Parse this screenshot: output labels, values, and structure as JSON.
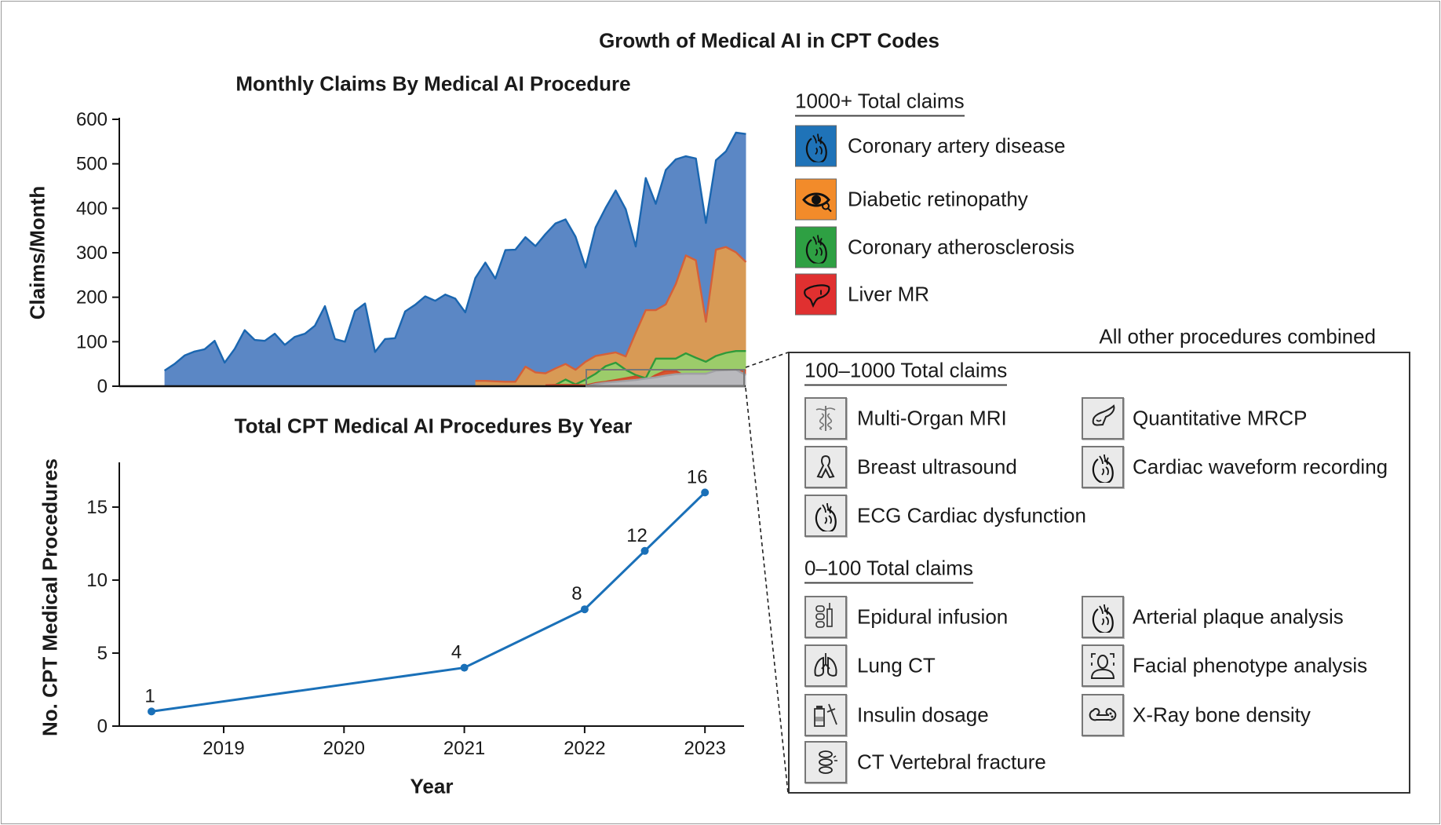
{
  "figure_title": "Growth of Medical AI in CPT Codes",
  "chart_data": [
    {
      "type": "area",
      "title": "Monthly Claims By Medical AI Procedure",
      "ylabel": "Claims/Month",
      "xlabel": "",
      "ylim": [
        0,
        600
      ],
      "yticks": [
        "0",
        "100",
        "200",
        "300",
        "400",
        "500",
        "600"
      ],
      "overlapping": true,
      "grid": false,
      "series": [
        {
          "name": "Coronary artery disease",
          "color": "#5b87c5",
          "line": "#1a66b0",
          "start": 0,
          "values": [
            35,
            50,
            69,
            78,
            83,
            102,
            53,
            84,
            126,
            104,
            102,
            118,
            93,
            111,
            118,
            136,
            180,
            106,
            100,
            169,
            186,
            77,
            106,
            108,
            168,
            183,
            202,
            192,
            206,
            197,
            166,
            243,
            278,
            242,
            306,
            307,
            335,
            315,
            342,
            366,
            375,
            336,
            267,
            357,
            401,
            440,
            398,
            314,
            468,
            410,
            486,
            510,
            517,
            512,
            367,
            508,
            528,
            570,
            567
          ]
        },
        {
          "name": "Diabetic retinopathy",
          "color": "#d89a55",
          "line": "#d4603a",
          "start": 31,
          "values": [
            12,
            12,
            11,
            10,
            10,
            44,
            31,
            29,
            40,
            50,
            37,
            55,
            68,
            72,
            76,
            67,
            120,
            171,
            171,
            184,
            230,
            294,
            283,
            145,
            307,
            313,
            301,
            279
          ]
        },
        {
          "name": "Coronary atherosclerosis",
          "color": "#9ccc6a",
          "line": "#2e9a3a",
          "start": 39,
          "values": [
            3,
            15,
            4,
            15,
            28,
            45,
            53,
            37,
            25,
            18,
            62,
            62,
            62,
            74,
            64,
            55,
            68,
            75,
            79,
            79
          ]
        },
        {
          "name": "Liver MR",
          "color": "#d8552f",
          "line": "#cc4a2a",
          "start": 38,
          "values": [
            2,
            3,
            3,
            3,
            2,
            7,
            10,
            14,
            18,
            22,
            12,
            25,
            35,
            34,
            22,
            24,
            25,
            30,
            32,
            34,
            36
          ]
        },
        {
          "name": "All other procedures combined",
          "color": "#b9b9bd",
          "line": "#a0a0a5",
          "start": 42,
          "values": [
            0,
            5,
            8,
            10,
            12,
            14,
            17,
            20,
            24,
            27,
            28,
            28,
            28,
            35,
            36,
            37,
            25
          ]
        }
      ]
    },
    {
      "type": "line",
      "title": "Total CPT Medical AI Procedures By Year",
      "xlabel": "Year",
      "ylabel": "No. CPT Medical Procedures",
      "ylim": [
        0,
        18
      ],
      "xlim": [
        2018.2,
        2023.3
      ],
      "yticks": [
        "0",
        "5",
        "10",
        "15"
      ],
      "xticks": [
        "2019",
        "2020",
        "2021",
        "2022",
        "2023"
      ],
      "color": "#1a70b8",
      "grid": false,
      "x": [
        2018.4,
        2021.0,
        2022.0,
        2022.5,
        2023.0
      ],
      "y": [
        1,
        4,
        8,
        12,
        16
      ],
      "labels": [
        "1",
        "4",
        "8",
        "12",
        "16"
      ]
    }
  ],
  "legend": {
    "major_header": "1000+ Total claims",
    "major": [
      {
        "label": "Coronary artery disease",
        "color": "#1f73b8",
        "icon": "heart-icon"
      },
      {
        "label": "Diabetic retinopathy",
        "color": "#f28b2a",
        "icon": "eye-icon"
      },
      {
        "label": "Coronary atherosclerosis",
        "color": "#2ea043",
        "icon": "heart-icon"
      },
      {
        "label": "Liver MR",
        "color": "#e03030",
        "icon": "liver-icon"
      }
    ],
    "other_title": "All other procedures combined",
    "mid_header": "100–1000 Total claims",
    "mid": [
      {
        "label": "Multi-Organ MRI",
        "icon": "caduceus-icon"
      },
      {
        "label": "Quantitative MRCP",
        "icon": "pancreas-icon"
      },
      {
        "label": "Breast ultrasound",
        "icon": "ribbon-icon"
      },
      {
        "label": "Cardiac waveform recording",
        "icon": "heart-icon"
      },
      {
        "label": "ECG Cardiac dysfunction",
        "icon": "heart-icon"
      }
    ],
    "low_header": "0–100 Total claims",
    "low": [
      {
        "label": "Epidural infusion",
        "icon": "spine-syringe-icon"
      },
      {
        "label": "Arterial plaque analysis",
        "icon": "heart-icon"
      },
      {
        "label": "Lung CT",
        "icon": "lungs-icon"
      },
      {
        "label": "Facial phenotype analysis",
        "icon": "face-scan-icon"
      },
      {
        "label": "Insulin dosage",
        "icon": "insulin-syringe-icon"
      },
      {
        "label": "X-Ray bone density",
        "icon": "bone-icon"
      },
      {
        "label": "CT Vertebral fracture",
        "icon": "vertebra-icon"
      }
    ]
  }
}
